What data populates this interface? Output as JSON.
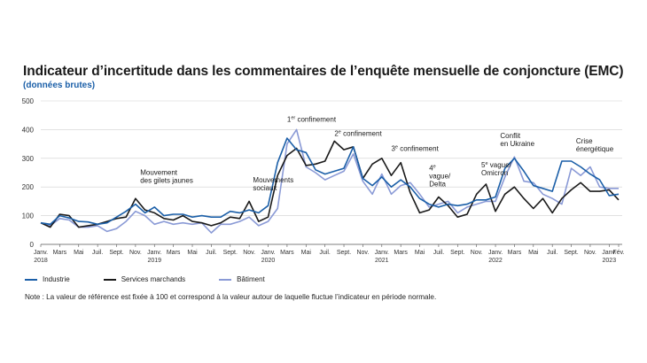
{
  "chart_data": {
    "type": "line",
    "title": "Indicateur d’incertitude dans les commentaires de l’enquête mensuelle de conjoncture (EMC)",
    "subtitle": "(données brutes)",
    "ylim": [
      0,
      500
    ],
    "yticks": [
      0,
      100,
      200,
      300,
      400,
      500
    ],
    "grid": true,
    "n_months": 62,
    "x_ticks": [
      {
        "i": 0,
        "l1": "Janv.",
        "l2": "2018"
      },
      {
        "i": 2,
        "l1": "Mars",
        "l2": ""
      },
      {
        "i": 4,
        "l1": "Mai",
        "l2": ""
      },
      {
        "i": 6,
        "l1": "Juil.",
        "l2": ""
      },
      {
        "i": 8,
        "l1": "Sept.",
        "l2": ""
      },
      {
        "i": 10,
        "l1": "Nov.",
        "l2": ""
      },
      {
        "i": 12,
        "l1": "Janv.",
        "l2": "2019"
      },
      {
        "i": 14,
        "l1": "Mars",
        "l2": ""
      },
      {
        "i": 16,
        "l1": "Mai",
        "l2": ""
      },
      {
        "i": 18,
        "l1": "Juil.",
        "l2": ""
      },
      {
        "i": 20,
        "l1": "Sept.",
        "l2": ""
      },
      {
        "i": 22,
        "l1": "Nov.",
        "l2": ""
      },
      {
        "i": 24,
        "l1": "Janv.",
        "l2": "2020"
      },
      {
        "i": 26,
        "l1": "Mars",
        "l2": ""
      },
      {
        "i": 28,
        "l1": "Mai",
        "l2": ""
      },
      {
        "i": 30,
        "l1": "Juil.",
        "l2": ""
      },
      {
        "i": 32,
        "l1": "Sept.",
        "l2": ""
      },
      {
        "i": 34,
        "l1": "Nov.",
        "l2": ""
      },
      {
        "i": 36,
        "l1": "Janv.",
        "l2": "2021"
      },
      {
        "i": 38,
        "l1": "Mars",
        "l2": ""
      },
      {
        "i": 40,
        "l1": "Mai",
        "l2": ""
      },
      {
        "i": 42,
        "l1": "Juil.",
        "l2": ""
      },
      {
        "i": 44,
        "l1": "Sept.",
        "l2": ""
      },
      {
        "i": 46,
        "l1": "Nov.",
        "l2": ""
      },
      {
        "i": 48,
        "l1": "Janv.",
        "l2": "2022"
      },
      {
        "i": 50,
        "l1": "Mars",
        "l2": ""
      },
      {
        "i": 52,
        "l1": "Mai",
        "l2": ""
      },
      {
        "i": 54,
        "l1": "Juil.",
        "l2": ""
      },
      {
        "i": 56,
        "l1": "Sept.",
        "l2": ""
      },
      {
        "i": 58,
        "l1": "Nov.",
        "l2": ""
      },
      {
        "i": 60,
        "l1": "Janv.",
        "l2": "2023"
      },
      {
        "i": 61,
        "l1": "Fév.",
        "l2": ""
      }
    ],
    "series": [
      {
        "name": "Industrie",
        "color": "#1b5fa8",
        "values": [
          75,
          70,
          100,
          92,
          80,
          78,
          70,
          75,
          95,
          115,
          140,
          110,
          130,
          100,
          105,
          105,
          95,
          100,
          95,
          95,
          115,
          110,
          120,
          110,
          135,
          285,
          370,
          330,
          320,
          260,
          245,
          255,
          265,
          340,
          230,
          205,
          235,
          200,
          225,
          200,
          160,
          140,
          130,
          140,
          135,
          140,
          155,
          155,
          165,
          265,
          300,
          255,
          205,
          195,
          185,
          290,
          290,
          270,
          245,
          225,
          170,
          175
        ]
      },
      {
        "name": "Services marchands",
        "color": "#1a1a1a",
        "values": [
          75,
          60,
          105,
          100,
          60,
          65,
          70,
          80,
          90,
          95,
          160,
          120,
          110,
          90,
          85,
          100,
          80,
          75,
          65,
          75,
          95,
          90,
          150,
          80,
          95,
          240,
          310,
          335,
          275,
          280,
          290,
          360,
          330,
          340,
          230,
          280,
          300,
          240,
          285,
          180,
          110,
          120,
          165,
          135,
          95,
          105,
          175,
          210,
          115,
          175,
          200,
          160,
          125,
          160,
          110,
          160,
          190,
          215,
          185,
          185,
          190,
          155
        ]
      },
      {
        "name": "Bâtiment",
        "color": "#8a9ad6",
        "values": [
          75,
          65,
          90,
          85,
          60,
          60,
          65,
          45,
          55,
          80,
          115,
          100,
          70,
          80,
          70,
          75,
          70,
          75,
          40,
          70,
          70,
          80,
          95,
          65,
          80,
          125,
          350,
          400,
          270,
          250,
          225,
          240,
          255,
          315,
          220,
          175,
          245,
          175,
          205,
          215,
          175,
          130,
          140,
          150,
          110,
          130,
          140,
          150,
          150,
          235,
          305,
          220,
          215,
          175,
          160,
          140,
          265,
          240,
          270,
          200,
          195,
          195
        ]
      }
    ],
    "annotations": [
      {
        "i": 26,
        "v": 428,
        "anchor": "start",
        "lines": [
          "1er confinement"
        ],
        "sup": "er"
      },
      {
        "i": 31,
        "v": 378,
        "anchor": "start",
        "lines": [
          "2e confinement"
        ],
        "sup": "e"
      },
      {
        "i": 37,
        "v": 325,
        "anchor": "start",
        "lines": [
          "3e confinement"
        ],
        "sup": "e"
      },
      {
        "i": 41,
        "v": 258,
        "anchor": "start",
        "lines": [
          "4e",
          "vague/",
          "Delta"
        ],
        "sup": "e"
      },
      {
        "i": 46.5,
        "v": 268,
        "anchor": "start",
        "lines": [
          "5e vague/",
          "Omicron"
        ],
        "sup": "e"
      },
      {
        "i": 48.5,
        "v": 370,
        "anchor": "start",
        "lines": [
          "Conflit",
          "en Ukraine"
        ],
        "sup": ""
      },
      {
        "i": 56.5,
        "v": 352,
        "anchor": "start",
        "lines": [
          "Crise",
          "énergétique"
        ],
        "sup": ""
      },
      {
        "i": 10.5,
        "v": 243,
        "anchor": "start",
        "lines": [
          "Mouvement",
          "des gilets jaunes"
        ],
        "sup": ""
      },
      {
        "i": 22.4,
        "v": 216,
        "anchor": "start",
        "lines": [
          "Mouvements",
          "sociaux"
        ],
        "sup": ""
      }
    ]
  },
  "legend": {
    "items": [
      {
        "label": "Industrie",
        "color": "#1b5fa8"
      },
      {
        "label": "Services marchands",
        "color": "#1a1a1a"
      },
      {
        "label": "Bâtiment",
        "color": "#8a9ad6"
      }
    ]
  },
  "note": "Note : La valeur de référence est fixée à 100 et correspond à la valeur autour de laquelle fluctue l’indicateur en période normale."
}
